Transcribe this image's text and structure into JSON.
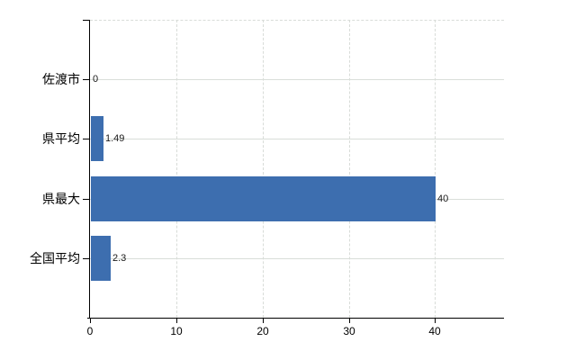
{
  "chart_data": {
    "type": "bar",
    "orientation": "horizontal",
    "title": "",
    "xlabel": "",
    "ylabel": "",
    "categories": [
      "佐渡市",
      "県平均",
      "県最大",
      "全国平均"
    ],
    "values": [
      0,
      1.49,
      40,
      2.3
    ],
    "value_labels": [
      "0",
      "1.49",
      "40",
      "2.3"
    ],
    "xlim": [
      0,
      48
    ],
    "x_ticks": [
      0,
      10,
      20,
      30,
      40
    ],
    "x_tick_labels": [
      "0",
      "10",
      "20",
      "30",
      "40"
    ],
    "grid": true,
    "legend": false,
    "colors": {
      "bar": "#3d6eaf",
      "gridline": "#d8dcd8",
      "row_line": "#d9ded9",
      "axis": "#000000",
      "value_text": "#1a1a1a",
      "label_text": "#000000",
      "background": "#ffffff"
    }
  }
}
